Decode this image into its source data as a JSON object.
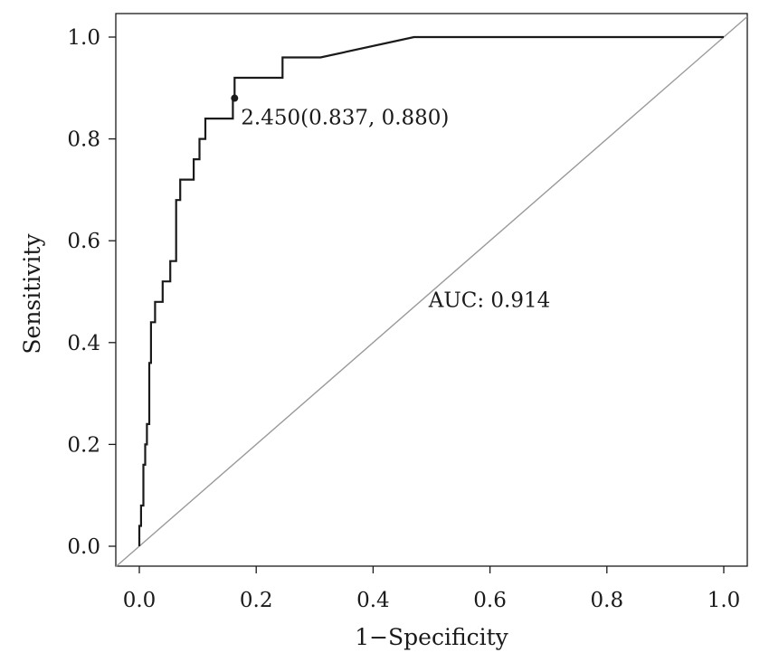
{
  "chart_data": {
    "type": "line",
    "title": "",
    "xlabel": "1−Specificity",
    "ylabel": "Sensitivity",
    "xlim": [
      -0.04,
      1.04
    ],
    "ylim": [
      -0.04,
      1.04
    ],
    "xticks": [
      0.0,
      0.2,
      0.4,
      0.6,
      0.8,
      1.0
    ],
    "xtick_labels": [
      "0.0",
      "0.2",
      "0.4",
      "0.6",
      "0.8",
      "1.0"
    ],
    "yticks": [
      0.0,
      0.2,
      0.4,
      0.6,
      0.8,
      1.0
    ],
    "ytick_labels": [
      "0.0",
      "0.2",
      "0.4",
      "0.6",
      "0.8",
      "1.0"
    ],
    "grid": false,
    "legend": "none",
    "series": [
      {
        "type": "step",
        "color": "#1a1a1a",
        "x": [
          0.0,
          0.0,
          0.003,
          0.003,
          0.007,
          0.007,
          0.01,
          0.01,
          0.013,
          0.013,
          0.017,
          0.017,
          0.02,
          0.02,
          0.027,
          0.027,
          0.04,
          0.04,
          0.053,
          0.053,
          0.063,
          0.063,
          0.07,
          0.07,
          0.093,
          0.093,
          0.103,
          0.103,
          0.113,
          0.113,
          0.16,
          0.16,
          0.163,
          0.163,
          0.245,
          0.245,
          0.31,
          0.31,
          0.47,
          0.47,
          1.0
        ],
        "y": [
          0.0,
          0.04,
          0.04,
          0.08,
          0.08,
          0.16,
          0.16,
          0.2,
          0.2,
          0.24,
          0.24,
          0.36,
          0.36,
          0.44,
          0.44,
          0.48,
          0.48,
          0.52,
          0.52,
          0.56,
          0.56,
          0.68,
          0.68,
          0.72,
          0.72,
          0.76,
          0.76,
          0.8,
          0.8,
          0.84,
          0.84,
          0.88,
          0.88,
          0.92,
          0.92,
          0.96,
          0.96,
          0.96,
          1.0,
          1.0,
          1.0
        ]
      },
      {
        "type": "reference",
        "color": "#9a9a9a",
        "x": [
          -0.04,
          1.04
        ],
        "y": [
          -0.04,
          1.04
        ]
      }
    ],
    "annotations": [
      {
        "text": "2.450(0.837, 0.880)",
        "point": [
          0.163,
          0.88
        ]
      },
      {
        "text": "AUC: 0.914",
        "anchor": [
          0.495,
          0.47
        ]
      }
    ]
  }
}
